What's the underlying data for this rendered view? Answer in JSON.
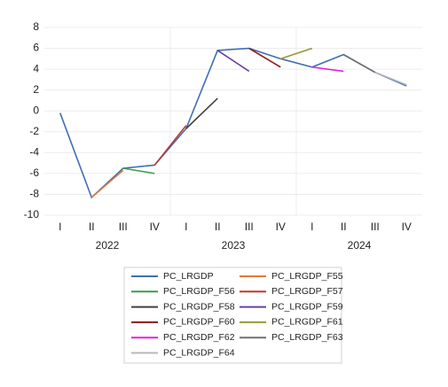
{
  "chart_data": {
    "type": "line",
    "categories": [
      "I",
      "II",
      "III",
      "IV",
      "I",
      "II",
      "III",
      "IV",
      "I",
      "II",
      "III",
      "IV"
    ],
    "group_labels": [
      "2022",
      "2023",
      "2024"
    ],
    "ylim": [
      -10,
      8
    ],
    "yticks": [
      -10,
      -8,
      -6,
      -4,
      -2,
      0,
      2,
      4,
      6,
      8
    ],
    "grid": true,
    "legend": "bottom",
    "series": [
      {
        "name": "PC_LRGDP",
        "color": "#3f6fb5",
        "values": [
          -0.2,
          -8.3,
          -5.5,
          -5.2,
          -1.7,
          5.8,
          6.0,
          5.0,
          4.2,
          5.4,
          3.7,
          2.4
        ]
      },
      {
        "name": "PC_LRGDP_F55",
        "color": "#e07b39",
        "values": [
          null,
          -8.3,
          -5.7,
          null,
          null,
          null,
          null,
          null,
          null,
          null,
          null,
          null
        ]
      },
      {
        "name": "PC_LRGDP_F56",
        "color": "#3c9a4a",
        "values": [
          null,
          null,
          -5.5,
          -6.0,
          null,
          null,
          null,
          null,
          null,
          null,
          null,
          null
        ]
      },
      {
        "name": "PC_LRGDP_F57",
        "color": "#c0392b",
        "values": [
          null,
          null,
          null,
          -5.2,
          -1.4,
          null,
          null,
          null,
          null,
          null,
          null,
          null
        ]
      },
      {
        "name": "PC_LRGDP_F58",
        "color": "#404040",
        "values": [
          null,
          null,
          null,
          null,
          -1.7,
          1.2,
          null,
          null,
          null,
          null,
          null,
          null
        ]
      },
      {
        "name": "PC_LRGDP_F59",
        "color": "#6b3fa0",
        "values": [
          null,
          null,
          null,
          null,
          null,
          5.8,
          3.8,
          null,
          null,
          null,
          null,
          null
        ]
      },
      {
        "name": "PC_LRGDP_F60",
        "color": "#8b1a1a",
        "values": [
          null,
          null,
          null,
          null,
          null,
          null,
          6.0,
          4.2,
          null,
          null,
          null,
          null
        ]
      },
      {
        "name": "PC_LRGDP_F61",
        "color": "#9a9a3a",
        "values": [
          null,
          null,
          null,
          null,
          null,
          null,
          null,
          5.0,
          6.0,
          null,
          null,
          null
        ]
      },
      {
        "name": "PC_LRGDP_F62",
        "color": "#e020e0",
        "values": [
          null,
          null,
          null,
          null,
          null,
          null,
          null,
          null,
          4.2,
          3.8,
          null,
          null
        ]
      },
      {
        "name": "PC_LRGDP_F63",
        "color": "#707070",
        "values": [
          null,
          null,
          null,
          null,
          null,
          null,
          null,
          null,
          null,
          5.4,
          3.7,
          null
        ]
      },
      {
        "name": "PC_LRGDP_F64",
        "color": "#b8b8b8",
        "values": [
          null,
          null,
          null,
          null,
          null,
          null,
          null,
          null,
          null,
          null,
          3.7,
          2.5
        ]
      }
    ]
  }
}
